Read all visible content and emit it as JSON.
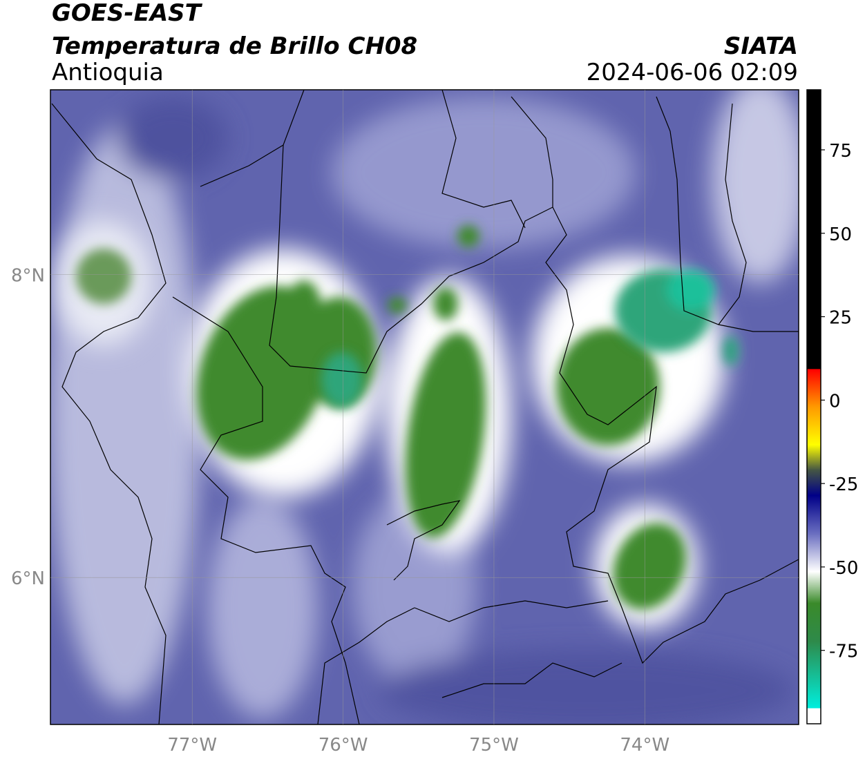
{
  "header": {
    "title": "GOES-EAST",
    "subtitle": "Temperatura de Brillo CH08",
    "agency": "SIATA",
    "region": "Antioquia",
    "datetime": "2024-06-06 02:09"
  },
  "map": {
    "xlim": [
      -77.94,
      -72.98
    ],
    "ylim": [
      5.03,
      9.22
    ],
    "xticks": [
      {
        "value": -77,
        "label": "77°W"
      },
      {
        "value": -76,
        "label": "76°W"
      },
      {
        "value": -75,
        "label": "75°W"
      },
      {
        "value": -74,
        "label": "74°W"
      }
    ],
    "yticks": [
      {
        "value": 6,
        "label": "6°N"
      },
      {
        "value": 8,
        "label": "8°N"
      }
    ],
    "grid": true
  },
  "colorbar": {
    "lim": [
      -97,
      93
    ],
    "ticks": [
      75,
      50,
      25,
      0,
      -25,
      -50,
      -75
    ]
  }
}
